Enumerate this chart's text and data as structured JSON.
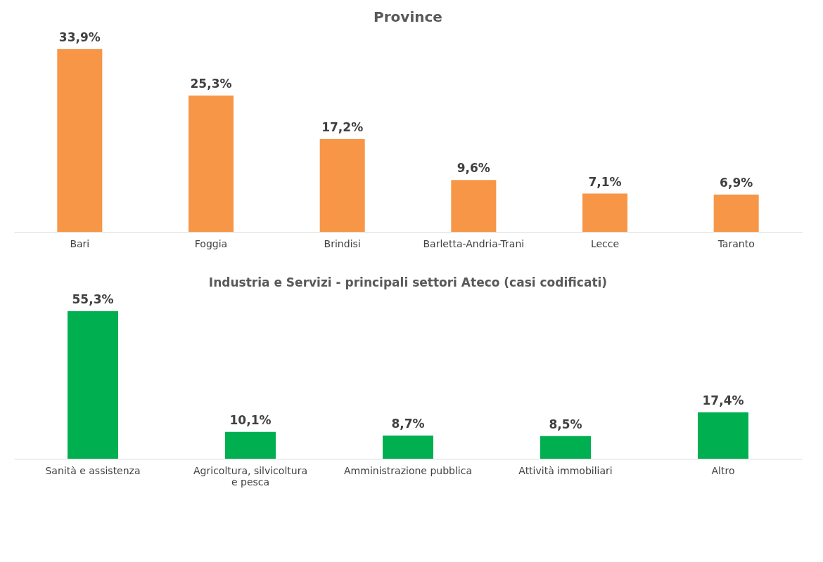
{
  "chart_data": [
    {
      "type": "bar",
      "title": "Province",
      "categories": [
        "Bari",
        "Foggia",
        "Brindisi",
        "Barletta-Andria-Trani",
        "Lecce",
        "Taranto"
      ],
      "values": [
        33.9,
        25.3,
        17.2,
        9.6,
        7.1,
        6.9
      ],
      "value_labels": [
        "33,9%",
        "25,3%",
        "17,2%",
        "9,6%",
        "7,1%",
        "6,9%"
      ],
      "color": "#f79646",
      "grid": false,
      "tick_labels": "x"
    },
    {
      "type": "bar",
      "title": "Industria e Servizi - principali settori Ateco (casi codificati)",
      "categories": [
        "Sanità e assistenza",
        "Agricoltura, silvicoltura e pesca",
        "Amministrazione pubblica",
        "Attività immobiliari",
        "Altro"
      ],
      "values": [
        55.3,
        10.1,
        8.7,
        8.5,
        17.4
      ],
      "value_labels": [
        "55,3%",
        "10,1%",
        "8,7%",
        "8,5%",
        "17,4%"
      ],
      "color": "#00b050",
      "grid": false,
      "tick_labels": "x"
    }
  ]
}
